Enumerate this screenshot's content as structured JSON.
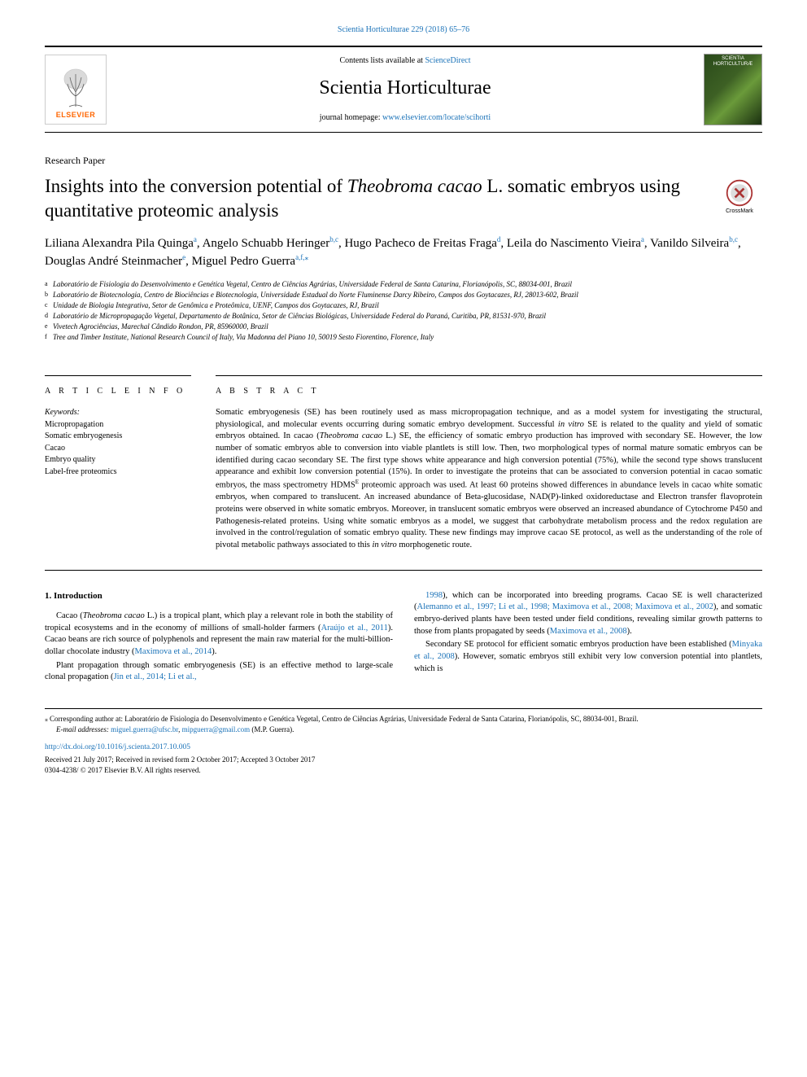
{
  "colors": {
    "link": "#1a72b8",
    "elsevier_orange": "#ff6600",
    "text": "#000000",
    "background": "#ffffff"
  },
  "typography": {
    "body_fontsize": 12,
    "title_fontsize": 23,
    "journal_fontsize": 24,
    "authors_fontsize": 15,
    "abstract_fontsize": 10.5,
    "footnote_fontsize": 9
  },
  "header": {
    "top_ref": "Scientia Horticulturae 229 (2018) 65–76",
    "contents_prefix": "Contents lists available at ",
    "contents_link": "ScienceDirect",
    "journal_title": "Scientia Horticulturae",
    "homepage_prefix": "journal homepage: ",
    "homepage_link": "www.elsevier.com/locate/scihorti",
    "publisher_logo_text": "ELSEVIER",
    "cover_label_line1": "SCIENTIA",
    "cover_label_line2": "HORTICULTURÆ"
  },
  "article": {
    "type": "Research Paper",
    "title_pre": "Insights into the conversion potential of ",
    "title_ital": "Theobroma cacao",
    "title_post": " L. somatic embryos using quantitative proteomic analysis",
    "crossmark_label": "CrossMark"
  },
  "authors_line": {
    "a1": "Liliana Alexandra Pila Quinga",
    "a1_aff": "a",
    "a2": "Angelo Schuabb Heringer",
    "a2_aff": "b,c",
    "a3": "Hugo Pacheco de Freitas Fraga",
    "a3_aff": "d",
    "a4": "Leila do Nascimento Vieira",
    "a4_aff": "a",
    "a5": "Vanildo Silveira",
    "a5_aff": "b,c",
    "a6": "Douglas André Steinmacher",
    "a6_aff": "e",
    "a7": "Miguel Pedro Guerra",
    "a7_aff": "a,f,",
    "a7_corr": "⁎"
  },
  "affiliations": {
    "a": "Laboratório de Fisiologia do Desenvolvimento e Genética Vegetal, Centro de Ciências Agrárias, Universidade Federal de Santa Catarina, Florianópolis, SC, 88034-001, Brazil",
    "b": "Laboratório de Biotecnologia, Centro de Biociências e Biotecnologia, Universidade Estadual do Norte Fluminense Darcy Ribeiro, Campos dos Goytacazes, RJ, 28013-602, Brazil",
    "c": "Unidade de Biologia Integrativa, Setor de Genômica e Proteômica, UENF, Campos dos Goytacazes, RJ, Brazil",
    "d": "Laboratório de Micropropagação Vegetal, Departamento de Botânica, Setor de Ciências Biológicas, Universidade Federal do Paraná, Curitiba, PR, 81531-970, Brazil",
    "e": "Vivetech Agrociências, Marechal Cândido Rondon, PR, 85960000, Brazil",
    "f": "Tree and Timber Institute, National Research Council of Italy, Via Madonna del Piano 10, 50019 Sesto Fiorentino, Florence, Italy"
  },
  "article_info": {
    "heading": "A R T I C L E  I N F O",
    "keywords_label": "Keywords:",
    "keywords": [
      "Micropropagation",
      "Somatic embryogenesis",
      "Cacao",
      "Embryo quality",
      "Label-free proteomics"
    ]
  },
  "abstract": {
    "heading": "A B S T R A C T",
    "text_parts": [
      {
        "t": "Somatic embryogenesis (SE) has been routinely used as mass micropropagation technique, and as a model system for investigating the structural, physiological, and molecular events occurring during somatic embryo development. Successful "
      },
      {
        "t": "in vitro",
        "i": true
      },
      {
        "t": " SE is related to the quality and yield of somatic embryos obtained. In cacao ("
      },
      {
        "t": "Theobroma cacao",
        "i": true
      },
      {
        "t": " L.) SE, the efficiency of somatic embryo production has improved with secondary SE. However, the low number of somatic embryos able to conversion into viable plantlets is still low. Then, two morphological types of normal mature somatic embryos can be identified during cacao secondary SE. The first type shows white appearance and high conversion potential (75%), while the second type shows translucent appearance and exhibit low conversion potential (15%). In order to investigate the proteins that can be associated to conversion potential in cacao somatic embryos, the mass spectrometry HDMS"
      },
      {
        "t": "E",
        "sup": true
      },
      {
        "t": " proteomic approach was used. At least 60 proteins showed differences in abundance levels in cacao white somatic embryos, when compared to translucent. An increased abundance of Beta-glucosidase, NAD(P)-linked oxidoreductase and Electron transfer flavoprotein proteins were observed in white somatic embryos. Moreover, in translucent somatic embryos were observed an increased abundance of Cytochrome P450 and Pathogenesis-related proteins. Using white somatic embryos as a model, we suggest that carbohydrate metabolism process and the redox regulation are involved in the control/regulation of somatic embryo quality. These new findings may improve cacao SE protocol, as well as the understanding of the role of pivotal metabolic pathways associated to this "
      },
      {
        "t": "in vitro",
        "i": true
      },
      {
        "t": " morphogenetic route."
      }
    ]
  },
  "body": {
    "intro_heading": "1. Introduction",
    "left_paras": [
      [
        {
          "t": "Cacao ("
        },
        {
          "t": "Theobroma cacao",
          "i": true
        },
        {
          "t": " L.) is a tropical plant, which play a relevant role in both the stability of tropical ecosystems and in the economy of millions of small-holder farmers ("
        },
        {
          "t": "Araújo et al., 2011",
          "c": true
        },
        {
          "t": "). Cacao beans are rich source of polyphenols and represent the main raw material for the multi-billion-dollar chocolate industry ("
        },
        {
          "t": "Maximova et al., 2014",
          "c": true
        },
        {
          "t": ")."
        }
      ],
      [
        {
          "t": "Plant propagation through somatic embryogenesis (SE) is an effective method to large-scale clonal propagation ("
        },
        {
          "t": "Jin et al., 2014; Li et al.,",
          "c": true
        }
      ]
    ],
    "right_paras": [
      [
        {
          "t": "1998",
          "c": true
        },
        {
          "t": "), which can be incorporated into breeding programs. Cacao SE is well characterized ("
        },
        {
          "t": "Alemanno et al., 1997; Li et al., 1998; Maximova et al., 2008; Maximova et al., 2002",
          "c": true
        },
        {
          "t": "), and somatic embryo-derived plants have been tested under field conditions, revealing similar growth patterns to those from plants propagated by seeds ("
        },
        {
          "t": "Maximova et al., 2008",
          "c": true
        },
        {
          "t": ")."
        }
      ],
      [
        {
          "t": "Secondary SE protocol for efficient somatic embryos production have been established ("
        },
        {
          "t": "Minyaka et al., 2008",
          "c": true
        },
        {
          "t": "). However, somatic embryos still exhibit very low conversion potential into plantlets, which is"
        }
      ]
    ]
  },
  "footer": {
    "corr_text": "Corresponding author at: Laboratório de Fisiologia do Desenvolvimento e Genética Vegetal, Centro de Ciências Agrárias, Universidade Federal de Santa Catarina, Florianópolis, SC, 88034-001, Brazil.",
    "email_label": "E-mail addresses:",
    "email1": "miguel.guerra@ufsc.br",
    "email2": "mipguerra@gmail.com",
    "email_name": "(M.P. Guerra).",
    "doi": "http://dx.doi.org/10.1016/j.scienta.2017.10.005",
    "received": "Received 21 July 2017; Received in revised form 2 October 2017; Accepted 3 October 2017",
    "copyright": "0304-4238/ © 2017 Elsevier B.V. All rights reserved."
  }
}
